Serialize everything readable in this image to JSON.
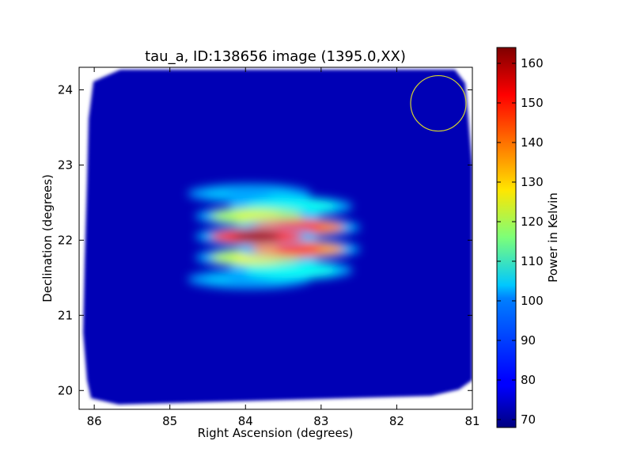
{
  "chart_data": {
    "type": "heatmap",
    "title": "tau_a, ID:138656 image (1395.0,XX)",
    "xlabel": "Right Ascension (degrees)",
    "ylabel": "Declination (degrees)",
    "xlim": [
      86.2,
      81.0
    ],
    "ylim": [
      19.75,
      24.3
    ],
    "x_ticks": [
      86,
      85,
      84,
      83,
      82,
      81
    ],
    "y_ticks": [
      20,
      21,
      22,
      23,
      24
    ],
    "x_tick_labels": [
      "86",
      "85",
      "84",
      "83",
      "82",
      "81"
    ],
    "y_tick_labels": [
      "20",
      "21",
      "22",
      "23",
      "24"
    ],
    "colorbar": {
      "label": "Power in Kelvin",
      "range": [
        68,
        164
      ],
      "ticks": [
        70,
        80,
        90,
        100,
        110,
        120,
        130,
        140,
        150,
        160
      ],
      "tick_labels": [
        "70",
        "80",
        "90",
        "100",
        "110",
        "120",
        "130",
        "140",
        "150",
        "160"
      ],
      "colormap": "jet"
    },
    "background_level": 73,
    "source_fringes": [
      {
        "ra": 83.85,
        "dec": 22.05,
        "peak": 162
      },
      {
        "ra": 83.3,
        "dec": 22.17,
        "peak": 152
      },
      {
        "ra": 83.3,
        "dec": 21.88,
        "peak": 148
      },
      {
        "ra": 83.85,
        "dec": 22.32,
        "peak": 125
      },
      {
        "ra": 83.85,
        "dec": 21.77,
        "peak": 127
      },
      {
        "ra": 83.4,
        "dec": 22.45,
        "peak": 105
      },
      {
        "ra": 83.4,
        "dec": 21.6,
        "peak": 105
      },
      {
        "ra": 83.95,
        "dec": 22.62,
        "peak": 95
      },
      {
        "ra": 83.95,
        "dec": 21.48,
        "peak": 95
      }
    ],
    "beam_circle": {
      "ra": 81.45,
      "dec": 23.82,
      "color": "#d4d430"
    },
    "grid": false,
    "legend": "none"
  }
}
